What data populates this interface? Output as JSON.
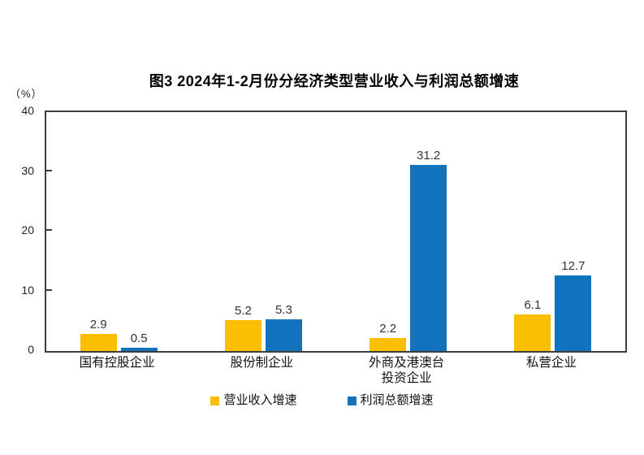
{
  "chart_data": {
    "type": "bar",
    "title": "图3 2024年1-2月份分经济类型营业收入与利润总额增速",
    "y_unit": "（%）",
    "categories": [
      "国有控股企业",
      "股份制企业",
      "外商及港澳台\n投资企业",
      "私营企业"
    ],
    "series": [
      {
        "name": "营业收入增速",
        "color": "#FBBE00",
        "values": [
          2.9,
          5.2,
          2.2,
          6.1
        ]
      },
      {
        "name": "利润总额增速",
        "color": "#1272BC",
        "values": [
          0.5,
          5.3,
          31.2,
          12.7
        ]
      }
    ],
    "ylim": [
      0,
      40
    ],
    "yticks": [
      0,
      10,
      20,
      30,
      40
    ],
    "grid": false,
    "legend_position": "bottom",
    "axis_color": "#3d3d3d"
  }
}
